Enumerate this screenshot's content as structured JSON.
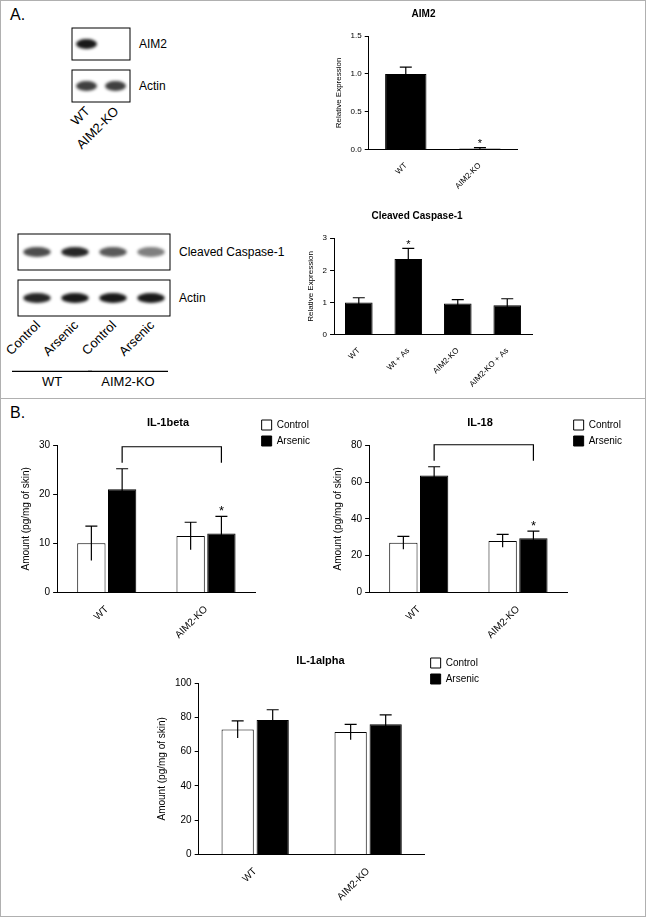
{
  "panel_labels": [
    "A.",
    "B."
  ],
  "blots": [
    {
      "lanes": [
        "WT",
        "AIM2-KO"
      ],
      "rows": [
        {
          "label": "AIM2",
          "bands": [
            0.9,
            0
          ]
        },
        {
          "label": "Actin",
          "bands": [
            0.75,
            0.75
          ]
        }
      ]
    },
    {
      "lanes": [
        "Control",
        "Arsenic",
        "Control",
        "Arsenic"
      ],
      "lane_groups": [
        "WT",
        "WT",
        "AIM2-KO",
        "AIM2-KO"
      ],
      "rows": [
        {
          "label": "Cleaved Caspase-1",
          "bands": [
            0.7,
            0.85,
            0.65,
            0.5
          ]
        },
        {
          "label": "Actin",
          "bands": [
            0.85,
            0.9,
            0.9,
            0.9
          ]
        }
      ]
    }
  ],
  "chart_data": [
    {
      "type": "bar",
      "title": "AIM2",
      "y_label": "Relative Expression",
      "categories": [
        "WT",
        "AIM2-KO"
      ],
      "values": [
        1.0,
        0.02
      ],
      "errors": [
        0.09,
        0.01
      ],
      "color": "#000000",
      "ylim": [
        0,
        1.5
      ],
      "yticks": [
        {
          "value": 0,
          "label": "0.0"
        },
        0.5,
        {
          "value": 1,
          "label": "1.0"
        },
        1.5
      ],
      "grid": false,
      "annotations": [
        {
          "text": "*",
          "category": "AIM2-KO"
        }
      ]
    },
    {
      "type": "bar",
      "title": "Cleaved Caspase-1",
      "y_label": "Relative Expression",
      "categories": [
        "WT",
        "Wt + As",
        "AIM2-KO",
        "AIM2-KO + As"
      ],
      "values": [
        1.0,
        2.35,
        0.97,
        0.92
      ],
      "errors": [
        0.15,
        0.33,
        0.12,
        0.2
      ],
      "color": "#000000",
      "ylim": [
        0,
        3
      ],
      "yticks": [
        0,
        1,
        2,
        3
      ],
      "grid": false,
      "annotations": [
        {
          "text": "*",
          "category": "Wt + As"
        }
      ]
    },
    {
      "type": "bar",
      "title": "IL-1beta",
      "y_label": "Amount (pg/mg of skin)",
      "categories": [
        "WT",
        "AIM2-KO"
      ],
      "series": [
        {
          "name": "Control",
          "color": "#ffffff",
          "values": [
            10,
            11.5
          ],
          "errors": [
            3.5,
            2.8
          ]
        },
        {
          "name": "Arsenic",
          "color": "#000000",
          "values": [
            21,
            12
          ],
          "errors": [
            4.2,
            3.5
          ]
        }
      ],
      "ylim": [
        0,
        30
      ],
      "yticks": [
        0,
        10,
        20,
        30
      ],
      "grid": false,
      "legend": "upper right",
      "annotations": [
        {
          "text": "*",
          "category": "AIM2-KO",
          "series": "Arsenic"
        }
      ],
      "brackets": [
        {
          "from": {
            "category": "WT",
            "series": "Arsenic"
          },
          "to": {
            "category": "AIM2-KO",
            "series": "Arsenic"
          }
        }
      ]
    },
    {
      "type": "bar",
      "title": "IL-18",
      "y_label": "Amount (pg/mg of skin)",
      "categories": [
        "WT",
        "AIM2-KO"
      ],
      "series": [
        {
          "name": "Control",
          "color": "#ffffff",
          "values": [
            27,
            28
          ],
          "errors": [
            3.5,
            3.5
          ]
        },
        {
          "name": "Arsenic",
          "color": "#000000",
          "values": [
            63.5,
            29.5
          ],
          "errors": [
            4.8,
            3.8
          ]
        }
      ],
      "ylim": [
        0,
        80
      ],
      "yticks": [
        0,
        20,
        40,
        60,
        80
      ],
      "grid": false,
      "legend": "upper right",
      "annotations": [
        {
          "text": "*",
          "category": "AIM2-KO",
          "series": "Arsenic"
        }
      ],
      "brackets": [
        {
          "from": {
            "category": "WT",
            "series": "Arsenic"
          },
          "to": {
            "category": "AIM2-KO",
            "series": "Arsenic"
          }
        }
      ]
    },
    {
      "type": "bar",
      "title": "IL-1alpha",
      "y_label": "Amount (pg/mg of skin)",
      "categories": [
        "WT",
        "AIM2-KO"
      ],
      "series": [
        {
          "name": "Control",
          "color": "#ffffff",
          "values": [
            73,
            71.5
          ],
          "errors": [
            5,
            4.5
          ]
        },
        {
          "name": "Arsenic",
          "color": "#000000",
          "values": [
            78.5,
            76
          ],
          "errors": [
            6,
            5.5
          ]
        }
      ],
      "ylim": [
        0,
        100
      ],
      "yticks": [
        0,
        20,
        40,
        60,
        80,
        100
      ],
      "grid": false,
      "legend": "upper right"
    }
  ]
}
